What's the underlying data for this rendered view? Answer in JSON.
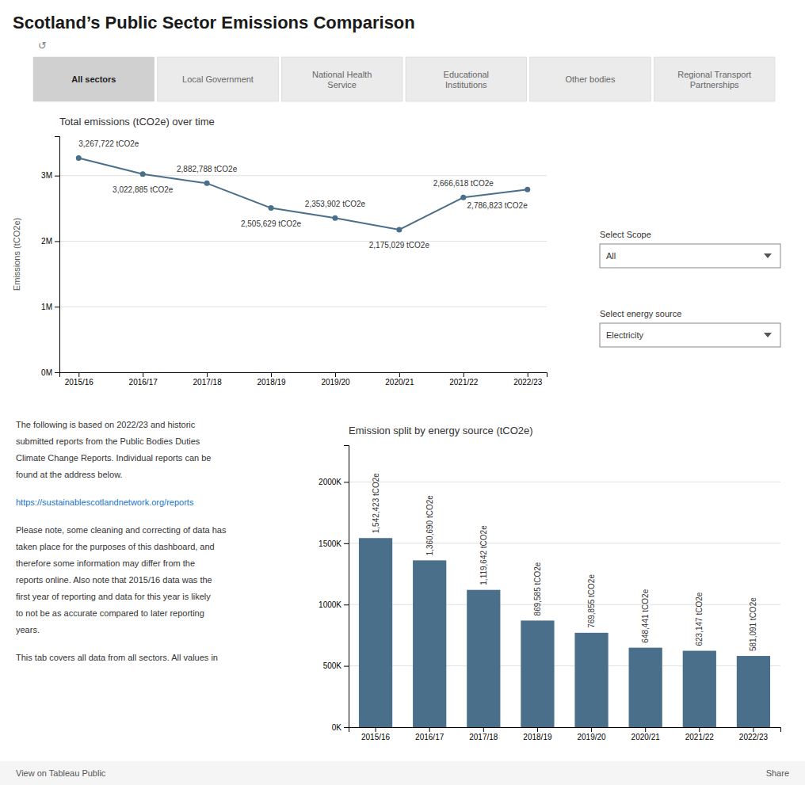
{
  "title": "Scotland’s Public Sector Emissions Comparison",
  "refresh_icon": "↺",
  "nav_tabs": [
    "All sectors",
    "Local Government",
    "National Health\nService",
    "Educational\nInstitutions",
    "Other bodies",
    "Regional Transport\nPartnerships"
  ],
  "nav_tab_active": 0,
  "select_scope_label": "Select Scope",
  "select_scope_value": "All",
  "select_energy_label": "Select energy source",
  "select_energy_value": "Electricity",
  "text_paragraphs": [
    [
      "The following is based on 2022/23 and historic",
      "submitted reports from the Public Bodies Duties",
      "Climate Change Reports. Individual reports can be",
      "found at the address below."
    ],
    [
      "https://sustainablescotlandnetwork.org/reports"
    ],
    [
      "Please note, some cleaning and correcting of data has",
      "taken place for the purposes of this dashboard, and",
      "therefore some information may differ from the",
      "reports online. Also note that 2015/16 data was the",
      "first year of reporting and data for this year is likely",
      "to not be as accurate compared to later reporting",
      "years."
    ],
    [
      "This tab covers all data from all sectors. All values in"
    ]
  ],
  "footer_text": "View on Tableau Public",
  "footer_share": "Share",
  "chart_data": [
    {
      "type": "line",
      "title": "Total emissions (tCO2e) over time",
      "ylabel": "Emissions (tCO2e)",
      "categories": [
        "2015/16",
        "2016/17",
        "2017/18",
        "2018/19",
        "2019/20",
        "2020/21",
        "2021/22",
        "2022/23"
      ],
      "values": [
        3267722,
        3022885,
        2882788,
        2505629,
        2353902,
        2175029,
        2666618,
        2786823
      ],
      "value_labels": [
        "3,267,722 tCO2e",
        "3,022,885 tCO2e",
        "2,882,788 tCO2e",
        "2,505,629 tCO2e",
        "2,353,902 tCO2e",
        "2,175,029 tCO2e",
        "2,666,618 tCO2e",
        "2,786,823 tCO2e"
      ],
      "color": "#4a6f8a",
      "marker": "circle",
      "ylim": [
        0,
        3600000
      ],
      "yticks": [
        {
          "value": 0,
          "label": "0M"
        },
        {
          "value": 1000000,
          "label": "1M"
        },
        {
          "value": 2000000,
          "label": "2M"
        },
        {
          "value": 3000000,
          "label": "3M"
        }
      ],
      "grid": true,
      "data_labels": true
    },
    {
      "type": "bar",
      "title": "Emission split by energy source (tCO2e)",
      "categories": [
        "2015/16",
        "2016/17",
        "2017/18",
        "2018/19",
        "2019/20",
        "2020/21",
        "2021/22",
        "2022/23"
      ],
      "values": [
        1542423,
        1360690,
        1119642,
        869585,
        769855,
        648441,
        623147,
        581091
      ],
      "value_labels": [
        "1,542,423 tCO2e",
        "1,360,690 tCO2e",
        "1,119,642 tCO2e",
        "869,585 tCO2e",
        "769,855 tCO2e",
        "648,441 tCO2e",
        "623,147 tCO2e",
        "581,091 tCO2e"
      ],
      "color": "#4a6f8a",
      "ylim": [
        0,
        2300000
      ],
      "yticks": [
        {
          "value": 0,
          "label": "0K"
        },
        {
          "value": 500000,
          "label": "500K"
        },
        {
          "value": 1000000,
          "label": "1000K"
        },
        {
          "value": 1500000,
          "label": "1500K"
        },
        {
          "value": 2000000,
          "label": "2000K"
        }
      ],
      "grid": true,
      "data_labels": true
    }
  ]
}
